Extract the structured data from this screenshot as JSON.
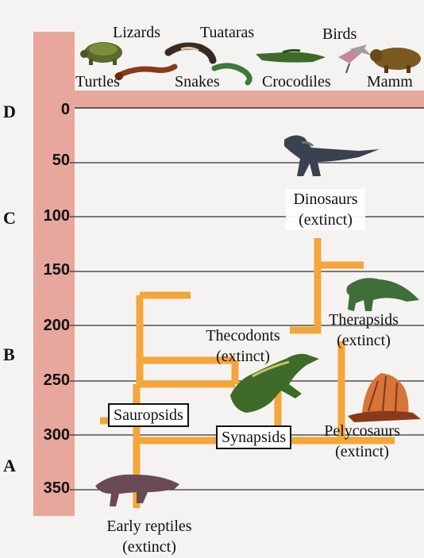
{
  "eras": [
    "D",
    "C",
    "B",
    "A"
  ],
  "time_ticks": [
    "0",
    "50",
    "100",
    "150",
    "200",
    "250",
    "300",
    "350"
  ],
  "groups": {
    "lizards": "Lizards",
    "tuataras": "Tuataras",
    "birds": "Birds",
    "turtles": "Turtles",
    "snakes": "Snakes",
    "crocodiles": "Crocodiles",
    "mammals": "Mamm"
  },
  "extinct_groups": {
    "dinosaurs": "Dinosaurs",
    "dinosaurs_note": "(extinct)",
    "therapsids": "Therapsids",
    "therapsids_note": "(extinct)",
    "thecodonts": "Thecodonts",
    "thecodonts_note": "(extinct)",
    "pelycosaurs": "Pelycosaurs",
    "pelycosaurs_note": "(extinct)",
    "early_reptiles": "Early reptiles",
    "early_reptiles_note": "(extinct)"
  },
  "clades": {
    "sauropsids": "Sauropsids",
    "synapsids": "Synapsids"
  },
  "colors": {
    "timebar": "#e8a79c",
    "branch": "#f2a93b",
    "branch_light": "#f8d46a",
    "gridline": "#333333"
  }
}
